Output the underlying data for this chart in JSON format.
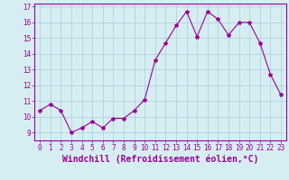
{
  "x": [
    0,
    1,
    2,
    3,
    4,
    5,
    6,
    7,
    8,
    9,
    10,
    11,
    12,
    13,
    14,
    15,
    16,
    17,
    18,
    19,
    20,
    21,
    22,
    23
  ],
  "y": [
    10.4,
    10.8,
    10.4,
    9.0,
    9.3,
    9.7,
    9.3,
    9.9,
    9.9,
    10.4,
    11.1,
    13.6,
    14.7,
    15.8,
    16.7,
    15.1,
    16.7,
    16.2,
    15.2,
    16.0,
    16.0,
    14.7,
    12.7,
    11.4
  ],
  "line_color": "#990099",
  "marker": "*",
  "marker_size": 3,
  "xlim": [
    -0.5,
    23.5
  ],
  "ylim": [
    8.5,
    17.2
  ],
  "yticks": [
    9,
    10,
    11,
    12,
    13,
    14,
    15,
    16,
    17
  ],
  "xticks": [
    0,
    1,
    2,
    3,
    4,
    5,
    6,
    7,
    8,
    9,
    10,
    11,
    12,
    13,
    14,
    15,
    16,
    17,
    18,
    19,
    20,
    21,
    22,
    23
  ],
  "xlabel": "Windchill (Refroidissement éolien,°C)",
  "bg_color": "#d6eef2",
  "grid_color": "#aaccdd",
  "tick_label_fontsize": 5.5,
  "xlabel_fontsize": 7.0,
  "line_width": 0.8
}
